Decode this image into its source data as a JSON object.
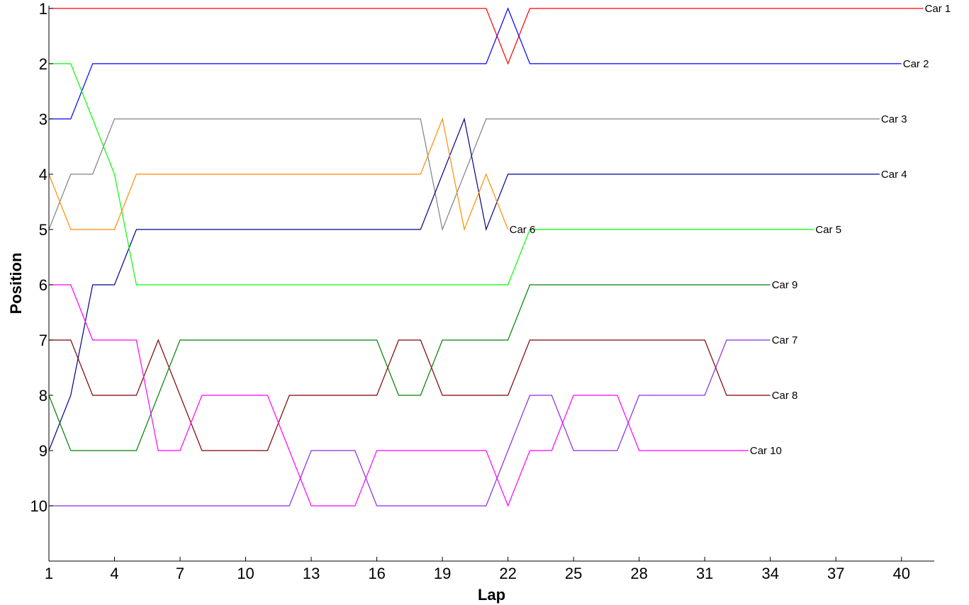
{
  "chart_data": {
    "type": "line",
    "title": "",
    "xlabel": "Lap",
    "ylabel": "Position",
    "xlim": [
      1,
      41.5
    ],
    "ylim": [
      0.95,
      11
    ],
    "y_inverted": true,
    "x_ticks": [
      1,
      4,
      7,
      10,
      13,
      16,
      19,
      22,
      25,
      28,
      31,
      34,
      37,
      40
    ],
    "y_ticks": [
      1,
      2,
      3,
      4,
      5,
      6,
      7,
      8,
      9,
      10
    ],
    "grid": false,
    "legend": "labels at line ends",
    "series": [
      {
        "name": "Car 1",
        "color": "#ff0000",
        "x": [
          1,
          2,
          3,
          4,
          5,
          6,
          7,
          8,
          9,
          10,
          11,
          12,
          13,
          14,
          15,
          16,
          17,
          18,
          19,
          20,
          21,
          22,
          23,
          24,
          25,
          26,
          27,
          28,
          29,
          30,
          31,
          32,
          33,
          34,
          35,
          36,
          37,
          38,
          39,
          40,
          41
        ],
        "y": [
          1,
          1,
          1,
          1,
          1,
          1,
          1,
          1,
          1,
          1,
          1,
          1,
          1,
          1,
          1,
          1,
          1,
          1,
          1,
          1,
          1,
          2,
          1,
          1,
          1,
          1,
          1,
          1,
          1,
          1,
          1,
          1,
          1,
          1,
          1,
          1,
          1,
          1,
          1,
          1,
          1
        ]
      },
      {
        "name": "Car 2",
        "color": "#0000ff",
        "x": [
          1,
          2,
          3,
          4,
          5,
          6,
          7,
          8,
          9,
          10,
          11,
          12,
          13,
          14,
          15,
          16,
          17,
          18,
          19,
          20,
          21,
          22,
          23,
          24,
          25,
          26,
          27,
          28,
          29,
          30,
          31,
          32,
          33,
          34,
          35,
          36,
          37,
          38,
          39,
          40
        ],
        "y": [
          3,
          3,
          2,
          2,
          2,
          2,
          2,
          2,
          2,
          2,
          2,
          2,
          2,
          2,
          2,
          2,
          2,
          2,
          2,
          2,
          2,
          1,
          2,
          2,
          2,
          2,
          2,
          2,
          2,
          2,
          2,
          2,
          2,
          2,
          2,
          2,
          2,
          2,
          2,
          2
        ]
      },
      {
        "name": "Car 3",
        "color": "#808080",
        "x": [
          1,
          2,
          3,
          4,
          5,
          6,
          7,
          8,
          9,
          10,
          11,
          12,
          13,
          14,
          15,
          16,
          17,
          18,
          19,
          20,
          21,
          22,
          23,
          24,
          25,
          26,
          27,
          28,
          29,
          30,
          31,
          32,
          33,
          34,
          35,
          36,
          37,
          38,
          39
        ],
        "y": [
          5,
          4,
          4,
          3,
          3,
          3,
          3,
          3,
          3,
          3,
          3,
          3,
          3,
          3,
          3,
          3,
          3,
          3,
          5,
          4,
          3,
          3,
          3,
          3,
          3,
          3,
          3,
          3,
          3,
          3,
          3,
          3,
          3,
          3,
          3,
          3,
          3,
          3,
          3
        ]
      },
      {
        "name": "Car 4",
        "color": "#00008b",
        "x": [
          1,
          2,
          3,
          4,
          5,
          6,
          7,
          8,
          9,
          10,
          11,
          12,
          13,
          14,
          15,
          16,
          17,
          18,
          19,
          20,
          21,
          22,
          23,
          24,
          25,
          26,
          27,
          28,
          29,
          30,
          31,
          32,
          33,
          34,
          35,
          36,
          37,
          38,
          39
        ],
        "y": [
          9,
          8,
          6,
          6,
          5,
          5,
          5,
          5,
          5,
          5,
          5,
          5,
          5,
          5,
          5,
          5,
          5,
          5,
          4,
          3,
          5,
          4,
          4,
          4,
          4,
          4,
          4,
          4,
          4,
          4,
          4,
          4,
          4,
          4,
          4,
          4,
          4,
          4,
          4
        ]
      },
      {
        "name": "Car 5",
        "color": "#00ff00",
        "x": [
          1,
          2,
          3,
          4,
          5,
          6,
          7,
          8,
          9,
          10,
          11,
          12,
          13,
          14,
          15,
          16,
          17,
          18,
          19,
          20,
          21,
          22,
          23,
          24,
          25,
          26,
          27,
          28,
          29,
          30,
          31,
          32,
          33,
          34,
          35,
          36
        ],
        "y": [
          2,
          2,
          3,
          4,
          6,
          6,
          6,
          6,
          6,
          6,
          6,
          6,
          6,
          6,
          6,
          6,
          6,
          6,
          6,
          6,
          6,
          6,
          5,
          5,
          5,
          5,
          5,
          5,
          5,
          5,
          5,
          5,
          5,
          5,
          5,
          5
        ]
      },
      {
        "name": "Car 6",
        "color": "#ff8c00",
        "x": [
          1,
          2,
          3,
          4,
          5,
          6,
          7,
          8,
          9,
          10,
          11,
          12,
          13,
          14,
          15,
          16,
          17,
          18,
          19,
          20,
          21,
          22
        ],
        "y": [
          4,
          5,
          5,
          5,
          4,
          4,
          4,
          4,
          4,
          4,
          4,
          4,
          4,
          4,
          4,
          4,
          4,
          4,
          3,
          5,
          4,
          5
        ]
      },
      {
        "name": "Car 7",
        "color": "#8a2be2",
        "x": [
          1,
          2,
          3,
          4,
          5,
          6,
          7,
          8,
          9,
          10,
          11,
          12,
          13,
          14,
          15,
          16,
          17,
          18,
          19,
          20,
          21,
          22,
          23,
          24,
          25,
          26,
          27,
          28,
          29,
          30,
          31,
          32,
          33,
          34
        ],
        "y": [
          10,
          10,
          10,
          10,
          10,
          10,
          10,
          10,
          10,
          10,
          10,
          10,
          9,
          9,
          9,
          10,
          10,
          10,
          10,
          10,
          10,
          9,
          8,
          8,
          9,
          9,
          9,
          8,
          8,
          8,
          8,
          7,
          7,
          7
        ]
      },
      {
        "name": "Car 8",
        "color": "#800000",
        "x": [
          1,
          2,
          3,
          4,
          5,
          6,
          7,
          8,
          9,
          10,
          11,
          12,
          13,
          14,
          15,
          16,
          17,
          18,
          19,
          20,
          21,
          22,
          23,
          24,
          25,
          26,
          27,
          28,
          29,
          30,
          31,
          32,
          33,
          34
        ],
        "y": [
          7,
          7,
          8,
          8,
          8,
          7,
          8,
          9,
          9,
          9,
          9,
          8,
          8,
          8,
          8,
          8,
          7,
          7,
          8,
          8,
          8,
          8,
          7,
          7,
          7,
          7,
          7,
          7,
          7,
          7,
          7,
          8,
          8,
          8
        ]
      },
      {
        "name": "Car 9",
        "color": "#008000",
        "x": [
          1,
          2,
          3,
          4,
          5,
          6,
          7,
          8,
          9,
          10,
          11,
          12,
          13,
          14,
          15,
          16,
          17,
          18,
          19,
          20,
          21,
          22,
          23,
          24,
          25,
          26,
          27,
          28,
          29,
          30,
          31,
          32,
          33,
          34
        ],
        "y": [
          8,
          9,
          9,
          9,
          9,
          8,
          7,
          7,
          7,
          7,
          7,
          7,
          7,
          7,
          7,
          7,
          8,
          8,
          7,
          7,
          7,
          7,
          6,
          6,
          6,
          6,
          6,
          6,
          6,
          6,
          6,
          6,
          6,
          6
        ]
      },
      {
        "name": "Car 10",
        "color": "#ff00ff",
        "x": [
          1,
          2,
          3,
          4,
          5,
          6,
          7,
          8,
          9,
          10,
          11,
          12,
          13,
          14,
          15,
          16,
          17,
          18,
          19,
          20,
          21,
          22,
          23,
          24,
          25,
          26,
          27,
          28,
          29,
          30,
          31,
          32,
          33
        ],
        "y": [
          6,
          6,
          7,
          7,
          7,
          9,
          9,
          8,
          8,
          8,
          8,
          9,
          10,
          10,
          10,
          9,
          9,
          9,
          9,
          9,
          9,
          10,
          9,
          9,
          8,
          8,
          8,
          9,
          9,
          9,
          9,
          9,
          9
        ]
      }
    ]
  }
}
